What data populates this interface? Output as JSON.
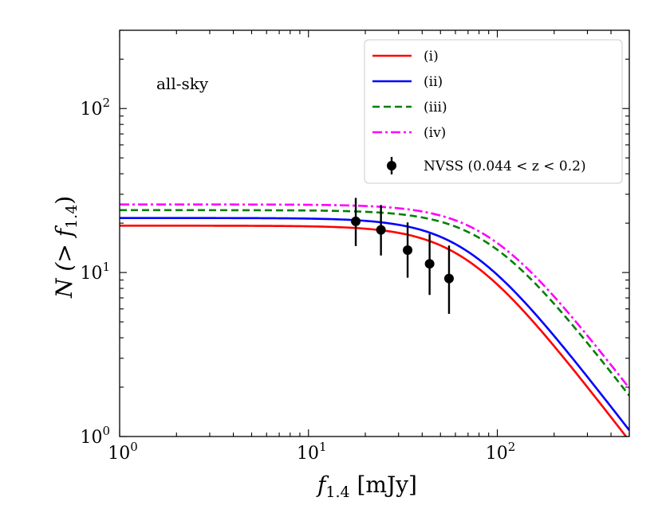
{
  "chart_data": {
    "type": "line",
    "scale": {
      "x": "log",
      "y": "log"
    },
    "xlim": [
      1,
      500
    ],
    "ylim": [
      1,
      300
    ],
    "xlabel": {
      "main": "f",
      "sub": "1.4",
      "unit": " [mJy]"
    },
    "ylabel": {
      "pre": "N (> f",
      "sub": "1.4",
      "post": ")"
    },
    "x_ticks": [
      {
        "value": 1,
        "base": "10",
        "exp": "0"
      },
      {
        "value": 10,
        "base": "10",
        "exp": "1"
      },
      {
        "value": 100,
        "base": "10",
        "exp": "2"
      }
    ],
    "y_ticks": [
      {
        "value": 1,
        "base": "10",
        "exp": "0"
      },
      {
        "value": 10,
        "base": "10",
        "exp": "1"
      },
      {
        "value": 100,
        "base": "10",
        "exp": "2"
      }
    ],
    "annotation": "all-sky",
    "series": [
      {
        "name": "(i)",
        "color": "#ff0000",
        "dash": "solid",
        "plateau": 19.3,
        "knee": 14.5,
        "asymptote_at_500": 0.95,
        "asymptote_slope": -1.5
      },
      {
        "name": "(ii)",
        "color": "#0000ff",
        "dash": "solid",
        "plateau": 21.5,
        "knee": 15,
        "asymptote_at_500": 1.1,
        "asymptote_slope": -1.5
      },
      {
        "name": "(iii)",
        "color": "#008000",
        "dash": "dashed",
        "plateau": 24,
        "knee": 17,
        "asymptote_at_500": 1.8,
        "asymptote_slope": -1.5
      },
      {
        "name": "(iv)",
        "color": "#ff00ff",
        "dash": "dashdot",
        "plateau": 26,
        "knee": 18,
        "asymptote_at_500": 2.0,
        "asymptote_slope": -1.5
      }
    ],
    "points": {
      "name": "NVSS",
      "legend_label": "NVSS (0.044 < z < 0.2)",
      "color": "#000000",
      "data": [
        {
          "x": 17.8,
          "y": 20.5,
          "ylo": 14.5,
          "yhi": 28.5
        },
        {
          "x": 24.2,
          "y": 18.2,
          "ylo": 12.7,
          "yhi": 25.8
        },
        {
          "x": 33.5,
          "y": 13.7,
          "ylo": 9.3,
          "yhi": 20.2
        },
        {
          "x": 43.8,
          "y": 11.3,
          "ylo": 7.3,
          "yhi": 17.2
        },
        {
          "x": 55.5,
          "y": 9.2,
          "ylo": 5.6,
          "yhi": 14.6
        }
      ]
    }
  }
}
